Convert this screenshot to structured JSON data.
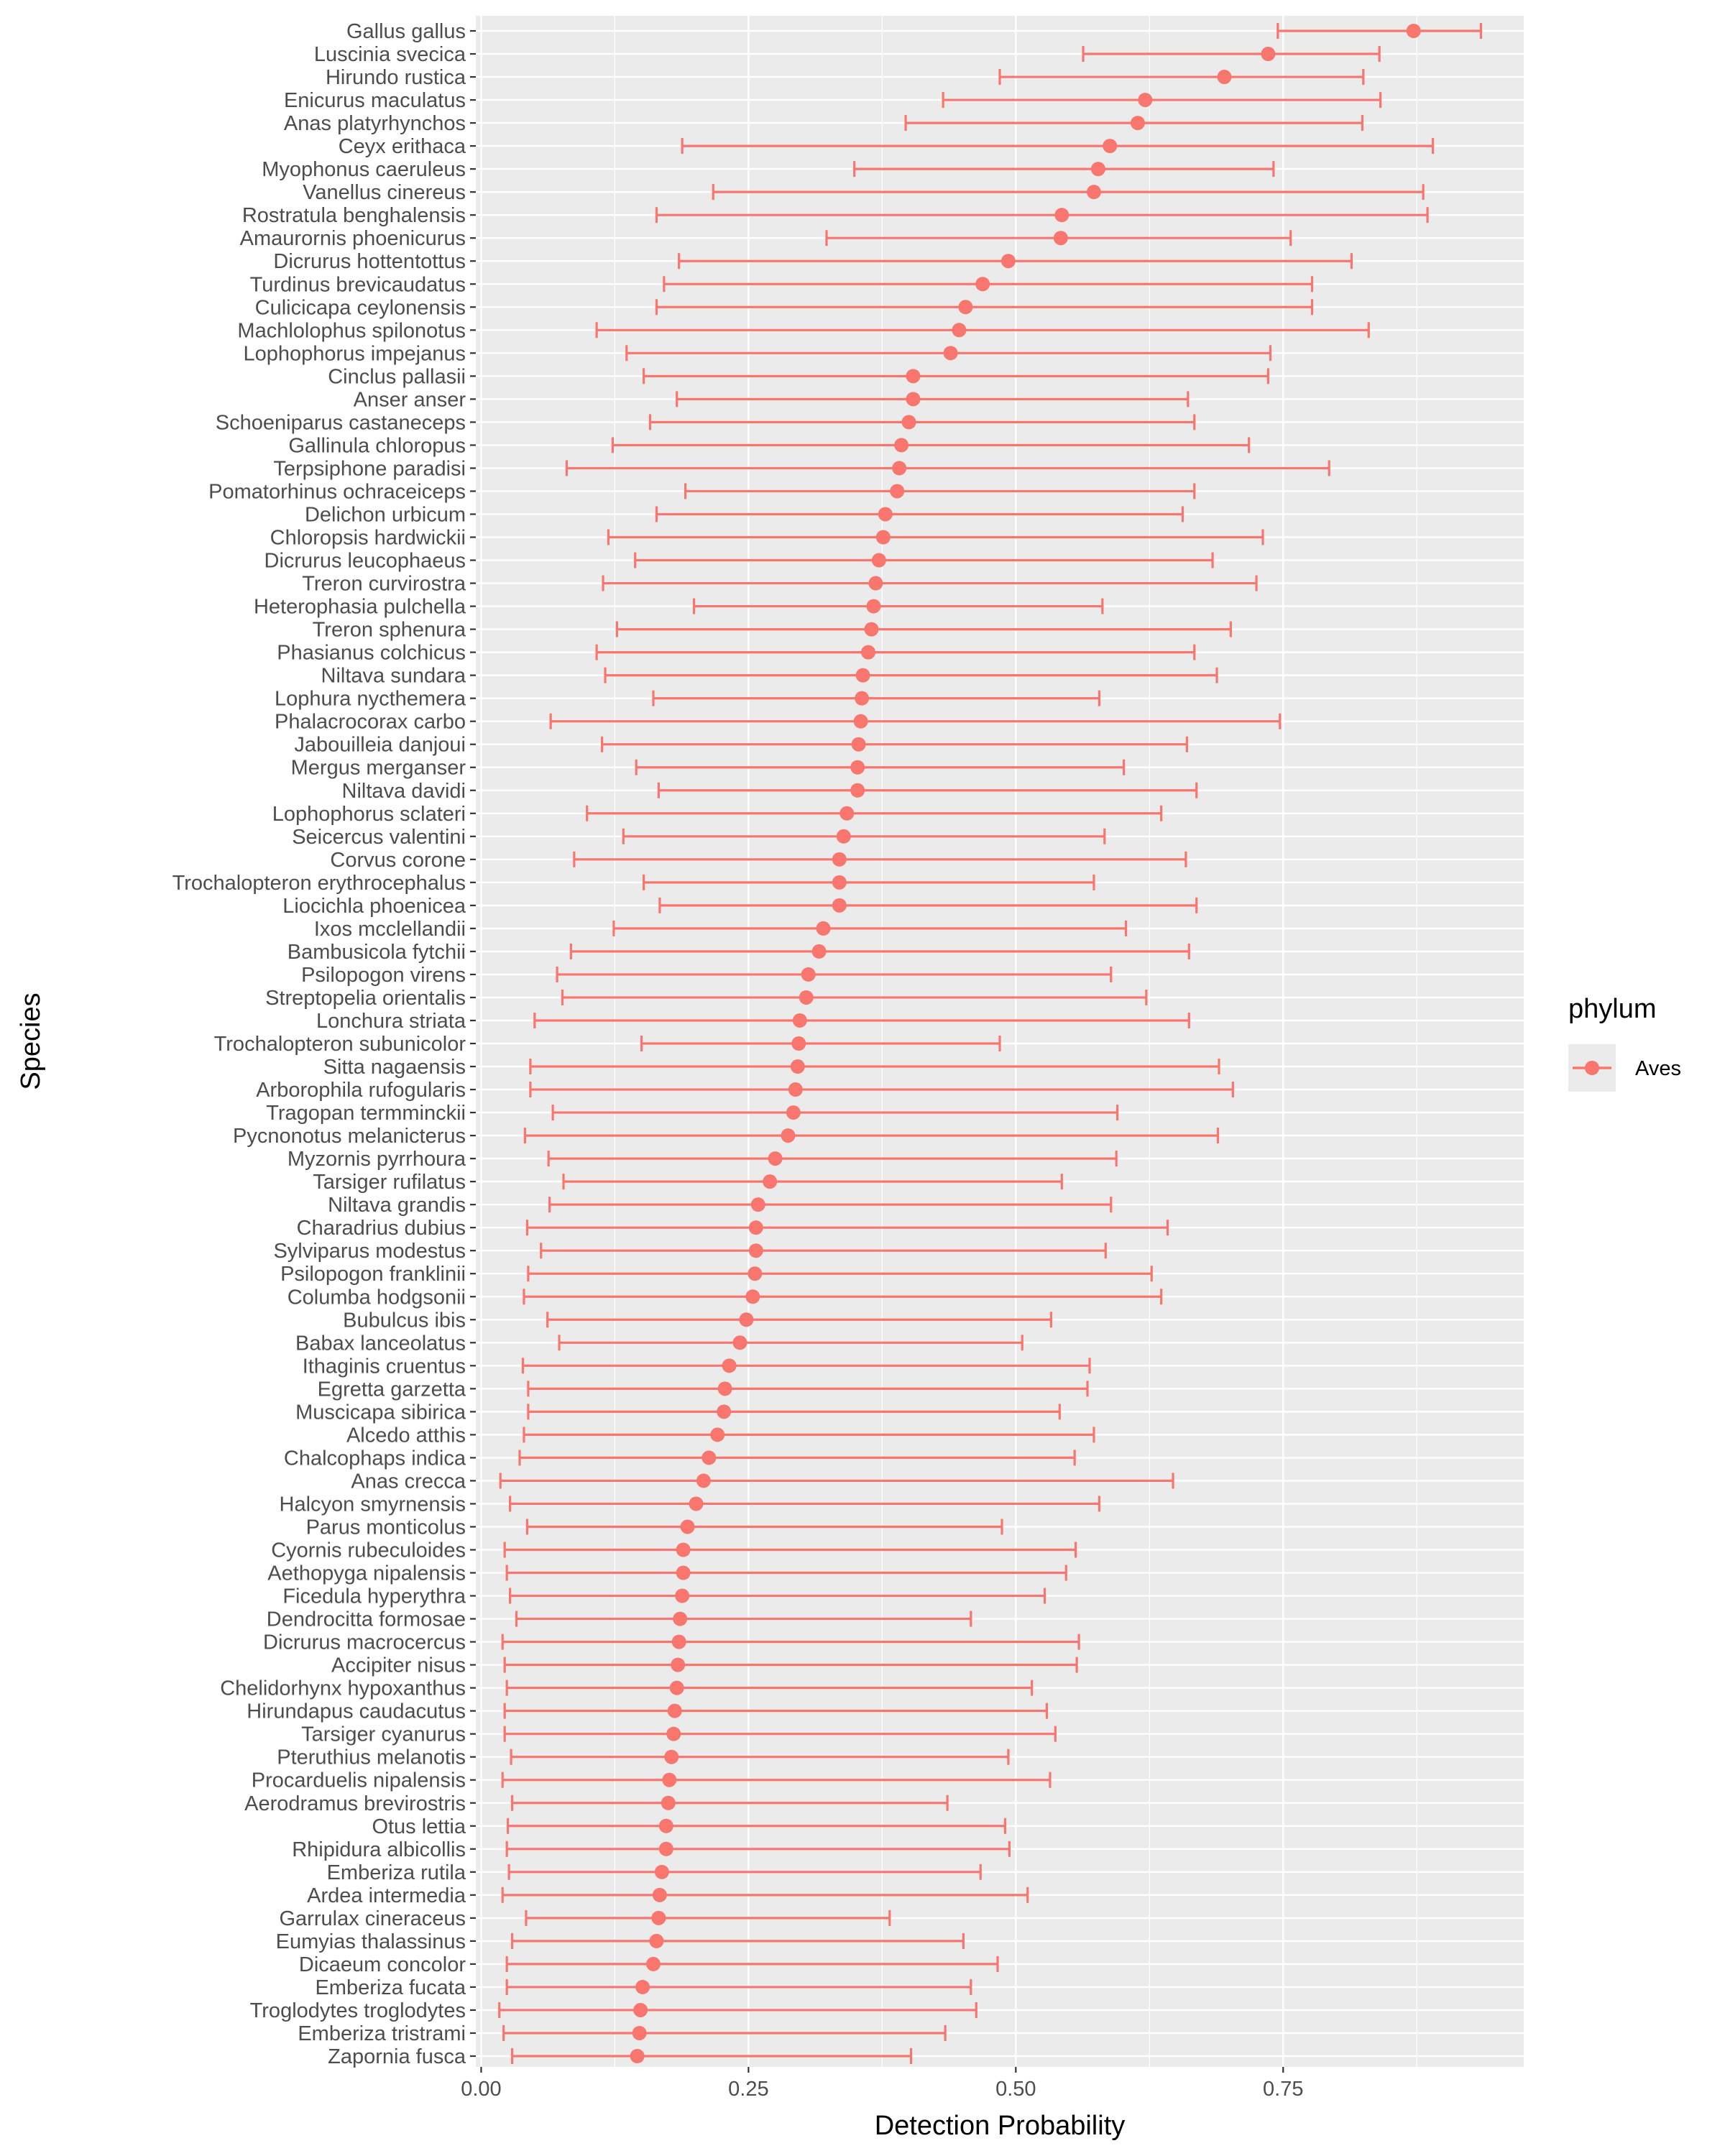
{
  "chart_data": {
    "type": "errorbar-dot",
    "xlabel": "Detection Probability",
    "ylabel": "Species",
    "xlim": [
      -0.005,
      0.975
    ],
    "x_ticks": [
      0.0,
      0.25,
      0.5,
      0.75
    ],
    "x_tick_labels": [
      "0.00",
      "0.25",
      "0.50",
      "0.75"
    ],
    "grid": true,
    "legend": {
      "title": "phylum",
      "entries": [
        "Aves"
      ],
      "placement": "right"
    },
    "series": [
      {
        "name": "Aves",
        "color": "#F8766D",
        "points": [
          {
            "species": "Gallus gallus",
            "estimate": 0.872,
            "lower": 0.745,
            "upper": 0.935
          },
          {
            "species": "Luscinia svecica",
            "estimate": 0.736,
            "lower": 0.563,
            "upper": 0.84
          },
          {
            "species": "Hirundo rustica",
            "estimate": 0.695,
            "lower": 0.485,
            "upper": 0.825
          },
          {
            "species": "Enicurus maculatus",
            "estimate": 0.621,
            "lower": 0.432,
            "upper": 0.841
          },
          {
            "species": "Anas platyrhynchos",
            "estimate": 0.614,
            "lower": 0.397,
            "upper": 0.824
          },
          {
            "species": "Ceyx erithaca",
            "estimate": 0.588,
            "lower": 0.188,
            "upper": 0.89
          },
          {
            "species": "Myophonus caeruleus",
            "estimate": 0.577,
            "lower": 0.349,
            "upper": 0.741
          },
          {
            "species": "Vanellus cinereus",
            "estimate": 0.573,
            "lower": 0.217,
            "upper": 0.881
          },
          {
            "species": "Rostratula benghalensis",
            "estimate": 0.543,
            "lower": 0.164,
            "upper": 0.885
          },
          {
            "species": "Amaurornis phoenicurus",
            "estimate": 0.542,
            "lower": 0.323,
            "upper": 0.757
          },
          {
            "species": "Dicrurus hottentottus",
            "estimate": 0.493,
            "lower": 0.185,
            "upper": 0.814
          },
          {
            "species": "Turdinus brevicaudatus",
            "estimate": 0.469,
            "lower": 0.171,
            "upper": 0.777
          },
          {
            "species": "Culicicapa ceylonensis",
            "estimate": 0.453,
            "lower": 0.164,
            "upper": 0.777
          },
          {
            "species": "Machlolophus spilonotus",
            "estimate": 0.447,
            "lower": 0.108,
            "upper": 0.83
          },
          {
            "species": "Lophophorus impejanus",
            "estimate": 0.439,
            "lower": 0.136,
            "upper": 0.738
          },
          {
            "species": "Cinclus pallasii",
            "estimate": 0.404,
            "lower": 0.152,
            "upper": 0.736
          },
          {
            "species": "Anser anser",
            "estimate": 0.404,
            "lower": 0.183,
            "upper": 0.661
          },
          {
            "species": "Schoeniparus castaneceps",
            "estimate": 0.4,
            "lower": 0.158,
            "upper": 0.667
          },
          {
            "species": "Gallinula chloropus",
            "estimate": 0.393,
            "lower": 0.123,
            "upper": 0.718
          },
          {
            "species": "Terpsiphone paradisi",
            "estimate": 0.391,
            "lower": 0.08,
            "upper": 0.793
          },
          {
            "species": "Pomatorhinus ochraceiceps",
            "estimate": 0.389,
            "lower": 0.191,
            "upper": 0.667
          },
          {
            "species": "Delichon urbicum",
            "estimate": 0.378,
            "lower": 0.164,
            "upper": 0.656
          },
          {
            "species": "Chloropsis hardwickii",
            "estimate": 0.376,
            "lower": 0.119,
            "upper": 0.731
          },
          {
            "species": "Dicrurus leucophaeus",
            "estimate": 0.372,
            "lower": 0.144,
            "upper": 0.684
          },
          {
            "species": "Treron curvirostra",
            "estimate": 0.369,
            "lower": 0.114,
            "upper": 0.725
          },
          {
            "species": "Heterophasia pulchella",
            "estimate": 0.367,
            "lower": 0.199,
            "upper": 0.581
          },
          {
            "species": "Treron sphenura",
            "estimate": 0.365,
            "lower": 0.127,
            "upper": 0.701
          },
          {
            "species": "Phasianus colchicus",
            "estimate": 0.362,
            "lower": 0.108,
            "upper": 0.667
          },
          {
            "species": "Niltava sundara",
            "estimate": 0.357,
            "lower": 0.116,
            "upper": 0.688
          },
          {
            "species": "Lophura nycthemera",
            "estimate": 0.356,
            "lower": 0.161,
            "upper": 0.578
          },
          {
            "species": "Phalacrocorax carbo",
            "estimate": 0.355,
            "lower": 0.065,
            "upper": 0.747
          },
          {
            "species": "Jabouilleia danjoui",
            "estimate": 0.353,
            "lower": 0.113,
            "upper": 0.66
          },
          {
            "species": "Mergus merganser",
            "estimate": 0.352,
            "lower": 0.145,
            "upper": 0.601
          },
          {
            "species": "Niltava davidi",
            "estimate": 0.352,
            "lower": 0.166,
            "upper": 0.669
          },
          {
            "species": "Lophophorus sclateri",
            "estimate": 0.342,
            "lower": 0.099,
            "upper": 0.636
          },
          {
            "species": "Seicercus valentini",
            "estimate": 0.339,
            "lower": 0.133,
            "upper": 0.583
          },
          {
            "species": "Corvus corone",
            "estimate": 0.335,
            "lower": 0.087,
            "upper": 0.659
          },
          {
            "species": "Trochalopteron erythrocephalus",
            "estimate": 0.335,
            "lower": 0.152,
            "upper": 0.573
          },
          {
            "species": "Liocichla phoenicea",
            "estimate": 0.335,
            "lower": 0.167,
            "upper": 0.669
          },
          {
            "species": "Ixos mcclellandii",
            "estimate": 0.32,
            "lower": 0.124,
            "upper": 0.603
          },
          {
            "species": "Bambusicola fytchii",
            "estimate": 0.316,
            "lower": 0.084,
            "upper": 0.662
          },
          {
            "species": "Psilopogon virens",
            "estimate": 0.306,
            "lower": 0.071,
            "upper": 0.589
          },
          {
            "species": "Streptopelia orientalis",
            "estimate": 0.304,
            "lower": 0.076,
            "upper": 0.622
          },
          {
            "species": "Lonchura striata",
            "estimate": 0.298,
            "lower": 0.05,
            "upper": 0.662
          },
          {
            "species": "Trochalopteron subunicolor",
            "estimate": 0.297,
            "lower": 0.15,
            "upper": 0.485
          },
          {
            "species": "Sitta nagaensis",
            "estimate": 0.296,
            "lower": 0.046,
            "upper": 0.69
          },
          {
            "species": "Arborophila rufogularis",
            "estimate": 0.294,
            "lower": 0.046,
            "upper": 0.703
          },
          {
            "species": "Tragopan termminckii",
            "estimate": 0.292,
            "lower": 0.067,
            "upper": 0.595
          },
          {
            "species": "Pycnonotus melanicterus",
            "estimate": 0.287,
            "lower": 0.041,
            "upper": 0.689
          },
          {
            "species": "Myzornis pyrrhoura",
            "estimate": 0.275,
            "lower": 0.063,
            "upper": 0.594
          },
          {
            "species": "Tarsiger rufilatus",
            "estimate": 0.27,
            "lower": 0.077,
            "upper": 0.543
          },
          {
            "species": "Niltava grandis",
            "estimate": 0.259,
            "lower": 0.064,
            "upper": 0.589
          },
          {
            "species": "Charadrius dubius",
            "estimate": 0.257,
            "lower": 0.043,
            "upper": 0.642
          },
          {
            "species": "Sylviparus modestus",
            "estimate": 0.257,
            "lower": 0.056,
            "upper": 0.584
          },
          {
            "species": "Psilopogon franklinii",
            "estimate": 0.256,
            "lower": 0.044,
            "upper": 0.627
          },
          {
            "species": "Columba hodgsonii",
            "estimate": 0.254,
            "lower": 0.04,
            "upper": 0.636
          },
          {
            "species": "Bubulcus ibis",
            "estimate": 0.248,
            "lower": 0.062,
            "upper": 0.533
          },
          {
            "species": "Babax lanceolatus",
            "estimate": 0.242,
            "lower": 0.073,
            "upper": 0.506
          },
          {
            "species": "Ithaginis cruentus",
            "estimate": 0.232,
            "lower": 0.039,
            "upper": 0.569
          },
          {
            "species": "Egretta garzetta",
            "estimate": 0.228,
            "lower": 0.044,
            "upper": 0.567
          },
          {
            "species": "Muscicapa sibirica",
            "estimate": 0.227,
            "lower": 0.044,
            "upper": 0.541
          },
          {
            "species": "Alcedo atthis",
            "estimate": 0.221,
            "lower": 0.04,
            "upper": 0.573
          },
          {
            "species": "Chalcophaps indica",
            "estimate": 0.213,
            "lower": 0.036,
            "upper": 0.555
          },
          {
            "species": "Anas crecca",
            "estimate": 0.208,
            "lower": 0.018,
            "upper": 0.647
          },
          {
            "species": "Halcyon smyrnensis",
            "estimate": 0.201,
            "lower": 0.027,
            "upper": 0.578
          },
          {
            "species": "Parus monticolus",
            "estimate": 0.193,
            "lower": 0.043,
            "upper": 0.487
          },
          {
            "species": "Cyornis rubeculoides",
            "estimate": 0.189,
            "lower": 0.022,
            "upper": 0.556
          },
          {
            "species": "Aethopyga nipalensis",
            "estimate": 0.189,
            "lower": 0.024,
            "upper": 0.547
          },
          {
            "species": "Ficedula hyperythra",
            "estimate": 0.188,
            "lower": 0.027,
            "upper": 0.527
          },
          {
            "species": "Dendrocitta formosae",
            "estimate": 0.186,
            "lower": 0.033,
            "upper": 0.458
          },
          {
            "species": "Dicrurus macrocercus",
            "estimate": 0.185,
            "lower": 0.02,
            "upper": 0.559
          },
          {
            "species": "Accipiter nisus",
            "estimate": 0.184,
            "lower": 0.022,
            "upper": 0.557
          },
          {
            "species": "Chelidorhynx hypoxanthus",
            "estimate": 0.183,
            "lower": 0.024,
            "upper": 0.515
          },
          {
            "species": "Hirundapus caudacutus",
            "estimate": 0.181,
            "lower": 0.022,
            "upper": 0.529
          },
          {
            "species": "Tarsiger cyanurus",
            "estimate": 0.18,
            "lower": 0.022,
            "upper": 0.537
          },
          {
            "species": "Pteruthius melanotis",
            "estimate": 0.178,
            "lower": 0.028,
            "upper": 0.493
          },
          {
            "species": "Procarduelis nipalensis",
            "estimate": 0.176,
            "lower": 0.02,
            "upper": 0.532
          },
          {
            "species": "Aerodramus brevirostris",
            "estimate": 0.175,
            "lower": 0.029,
            "upper": 0.436
          },
          {
            "species": "Otus lettia",
            "estimate": 0.173,
            "lower": 0.025,
            "upper": 0.49
          },
          {
            "species": "Rhipidura albicollis",
            "estimate": 0.173,
            "lower": 0.024,
            "upper": 0.494
          },
          {
            "species": "Emberiza rutila",
            "estimate": 0.169,
            "lower": 0.026,
            "upper": 0.467
          },
          {
            "species": "Ardea intermedia",
            "estimate": 0.167,
            "lower": 0.02,
            "upper": 0.511
          },
          {
            "species": "Garrulax cineraceus",
            "estimate": 0.166,
            "lower": 0.042,
            "upper": 0.382
          },
          {
            "species": "Eumyias thalassinus",
            "estimate": 0.164,
            "lower": 0.029,
            "upper": 0.451
          },
          {
            "species": "Dicaeum concolor",
            "estimate": 0.161,
            "lower": 0.024,
            "upper": 0.483
          },
          {
            "species": "Emberiza fucata",
            "estimate": 0.151,
            "lower": 0.024,
            "upper": 0.458
          },
          {
            "species": "Troglodytes troglodytes",
            "estimate": 0.149,
            "lower": 0.017,
            "upper": 0.463
          },
          {
            "species": "Emberiza tristrami",
            "estimate": 0.148,
            "lower": 0.021,
            "upper": 0.434
          },
          {
            "species": "Zapornia fusca",
            "estimate": 0.146,
            "lower": 0.029,
            "upper": 0.402
          }
        ]
      }
    ]
  }
}
